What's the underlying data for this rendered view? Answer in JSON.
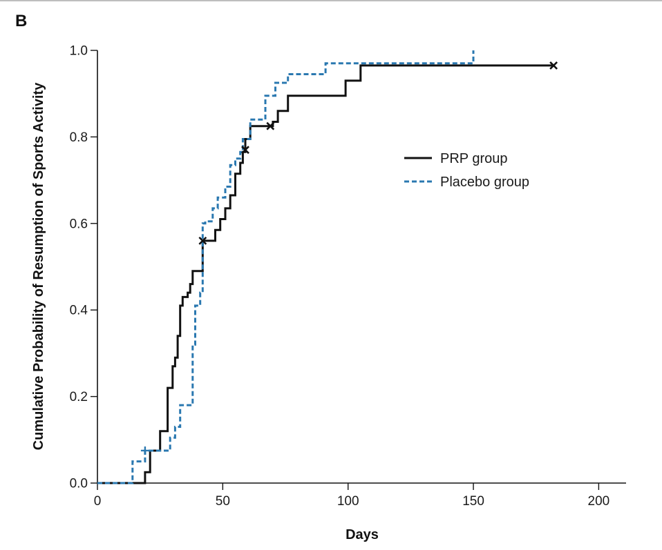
{
  "chart_data": {
    "type": "line",
    "panel_label": "B",
    "title": "",
    "xlabel": "Days",
    "ylabel": "Cumulative Probability of Resumption of Sports Activity",
    "xlim": [
      0,
      210
    ],
    "ylim": [
      0,
      1.0
    ],
    "x_ticks": [
      0,
      50,
      100,
      150,
      200
    ],
    "y_ticks": [
      0.0,
      0.2,
      0.4,
      0.6,
      0.8,
      1.0
    ],
    "x_tick_labels": [
      "0",
      "50",
      "100",
      "150",
      "200"
    ],
    "y_tick_labels": [
      "0.0",
      "0.2",
      "0.4",
      "0.6",
      "0.8",
      "1.0"
    ],
    "grid": false,
    "legend_position": "right",
    "series": [
      {
        "name": "PRP group",
        "style": "solid",
        "color": "#111111",
        "x": [
          0,
          19,
          21,
          23,
          25,
          28,
          30,
          31,
          32,
          33,
          34,
          36,
          37,
          38,
          42,
          47,
          49,
          51,
          53,
          55,
          57,
          58,
          59,
          61,
          70,
          72,
          76,
          99,
          102,
          105,
          182
        ],
        "y": [
          0,
          0.025,
          0.075,
          0.075,
          0.12,
          0.22,
          0.27,
          0.29,
          0.34,
          0.41,
          0.43,
          0.44,
          0.46,
          0.49,
          0.56,
          0.585,
          0.61,
          0.635,
          0.665,
          0.715,
          0.74,
          0.765,
          0.795,
          0.825,
          0.835,
          0.86,
          0.895,
          0.93,
          0.93,
          0.965,
          0.965
        ],
        "censored": [
          {
            "x": 42,
            "y": 0.56
          },
          {
            "x": 59,
            "y": 0.77
          },
          {
            "x": 69,
            "y": 0.825
          },
          {
            "x": 182,
            "y": 0.965
          }
        ]
      },
      {
        "name": "Placebo group",
        "style": "dashed",
        "color": "#2a78b0",
        "x": [
          0,
          14,
          19,
          24,
          29,
          31,
          33,
          36,
          38,
          39,
          41,
          42,
          43,
          46,
          48,
          51,
          53,
          55,
          57,
          58,
          61,
          67,
          71,
          76,
          83,
          91,
          100,
          150
        ],
        "y": [
          0,
          0.05,
          0.075,
          0.075,
          0.105,
          0.13,
          0.18,
          0.18,
          0.32,
          0.41,
          0.44,
          0.6,
          0.605,
          0.635,
          0.66,
          0.685,
          0.735,
          0.75,
          0.765,
          0.795,
          0.84,
          0.895,
          0.925,
          0.945,
          0.945,
          0.97,
          0.97,
          1.0
        ],
        "censored": [
          {
            "x": 19,
            "y": 0.075
          }
        ]
      }
    ]
  }
}
